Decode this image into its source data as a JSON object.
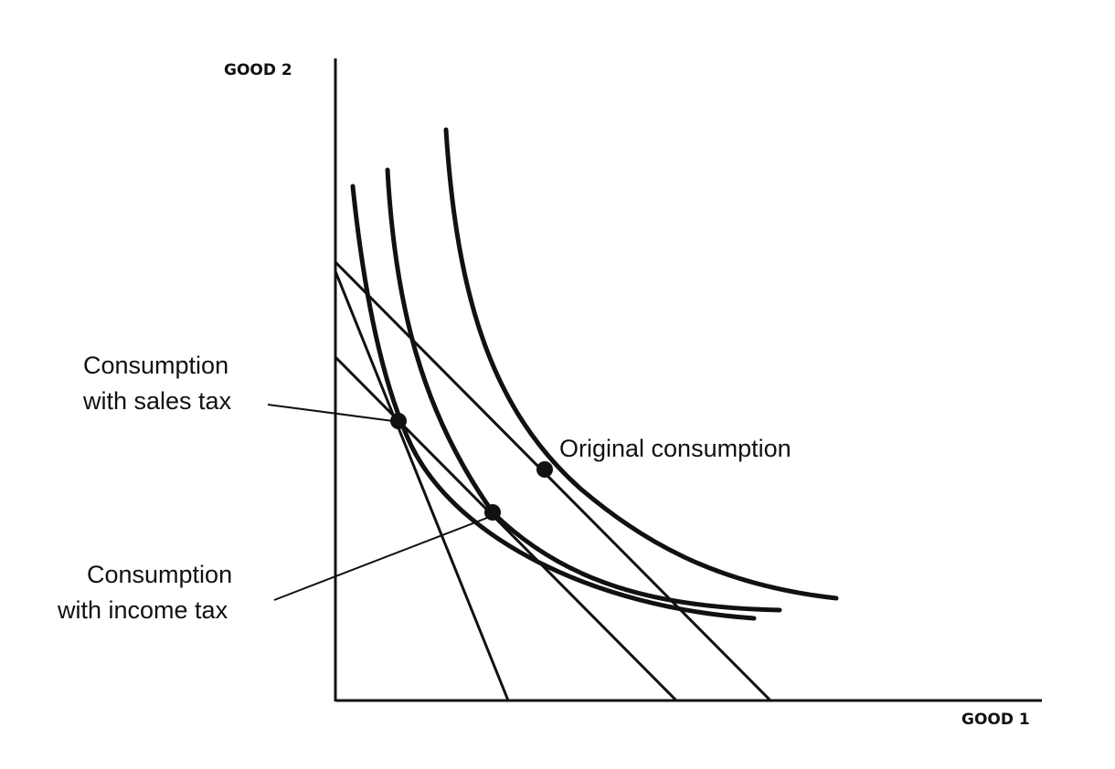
{
  "axes": {
    "y_label": "GOOD 2",
    "x_label": "GOOD 1"
  },
  "annotations": {
    "sales_tax_line1": "Consumption",
    "sales_tax_line2": "with sales tax",
    "income_tax_line1": "Consumption",
    "income_tax_line2": "with income tax",
    "original": "Original consumption"
  }
}
